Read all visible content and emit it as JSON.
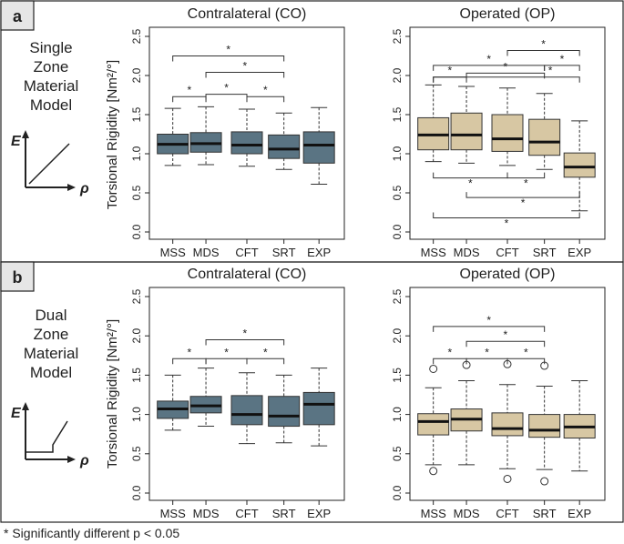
{
  "footnote": "* Significantly different p < 0.05",
  "y_axis_label": "Torsional Rigidity [Nm²/°]",
  "chart_data": [
    {
      "type": "box",
      "panel": "a",
      "row_label": "Single Zone Material Model",
      "title": "Contralateral (CO)",
      "ylim": [
        0,
        2.5
      ],
      "ticks": [
        "0.0",
        "0.5",
        "1.0",
        "1.5",
        "2.0",
        "2.5"
      ],
      "categories": [
        "MSS",
        "MDS",
        "CFT",
        "SRT",
        "EXP"
      ],
      "color": "#5a7483",
      "boxes": [
        {
          "min": 0.85,
          "q1": 1.0,
          "median": 1.12,
          "q3": 1.25,
          "max": 1.58
        },
        {
          "min": 0.86,
          "q1": 1.02,
          "median": 1.13,
          "q3": 1.27,
          "max": 1.6
        },
        {
          "min": 0.84,
          "q1": 1.0,
          "median": 1.11,
          "q3": 1.28,
          "max": 1.57
        },
        {
          "min": 0.8,
          "q1": 0.94,
          "median": 1.06,
          "q3": 1.24,
          "max": 1.52
        },
        {
          "min": 0.61,
          "q1": 0.88,
          "median": 1.11,
          "q3": 1.28,
          "max": 1.59
        }
      ],
      "outliers": [],
      "sig_brackets": [
        {
          "from": 0,
          "to": 1,
          "y": 1.73,
          "dir": "down"
        },
        {
          "from": 1,
          "to": 2,
          "y": 1.76,
          "dir": "down"
        },
        {
          "from": 2,
          "to": 3,
          "y": 1.73,
          "dir": "down"
        },
        {
          "from": 1,
          "to": 3,
          "y": 2.04,
          "dir": "down"
        },
        {
          "from": 0,
          "to": 3,
          "y": 2.25,
          "dir": "down"
        }
      ]
    },
    {
      "type": "box",
      "panel": "a",
      "title": "Operated (OP)",
      "ylim": [
        0,
        2.5
      ],
      "ticks": [
        "0.0",
        "0.5",
        "1.0",
        "1.5",
        "2.0",
        "2.5"
      ],
      "categories": [
        "MSS",
        "MDS",
        "CFT",
        "SRT",
        "EXP"
      ],
      "color": "#d7c7a3",
      "boxes": [
        {
          "min": 0.9,
          "q1": 1.05,
          "median": 1.24,
          "q3": 1.46,
          "max": 1.88
        },
        {
          "min": 0.88,
          "q1": 1.05,
          "median": 1.24,
          "q3": 1.52,
          "max": 1.86
        },
        {
          "min": 0.85,
          "q1": 1.03,
          "median": 1.19,
          "q3": 1.5,
          "max": 1.84
        },
        {
          "min": 0.8,
          "q1": 0.98,
          "median": 1.15,
          "q3": 1.44,
          "max": 1.77
        },
        {
          "min": 0.27,
          "q1": 0.7,
          "median": 0.83,
          "q3": 1.01,
          "max": 1.42
        }
      ],
      "outliers": [],
      "sig_brackets": [
        {
          "from": 0,
          "to": 1,
          "y": 1.98,
          "dir": "down"
        },
        {
          "from": 1,
          "to": 3,
          "y": 2.03,
          "dir": "down"
        },
        {
          "from": 0,
          "to": 3,
          "y": 2.13,
          "dir": "down"
        },
        {
          "from": 3,
          "to": 4,
          "y": 2.13,
          "dir": "down"
        },
        {
          "from": 2,
          "to": 4,
          "y": 2.32,
          "dir": "down"
        },
        {
          "from": 0,
          "to": 4,
          "y": 1.98,
          "dir": "down",
          "drop": 0.07,
          "star_x": 3.2
        },
        {
          "from": 0,
          "to": 2,
          "y": 0.69,
          "dir": "up"
        },
        {
          "from": 2,
          "to": 3,
          "y": 0.69,
          "dir": "up"
        },
        {
          "from": 1,
          "to": 4,
          "y": 0.44,
          "dir": "up"
        },
        {
          "from": 0,
          "to": 4,
          "y": 0.18,
          "dir": "up"
        }
      ]
    },
    {
      "type": "box",
      "panel": "b",
      "row_label": "Dual Zone Material Model",
      "title": "Contralateral (CO)",
      "ylim": [
        0,
        2.5
      ],
      "ticks": [
        "0.0",
        "0.5",
        "1.0",
        "1.5",
        "2.0",
        "2.5"
      ],
      "categories": [
        "MSS",
        "MDS",
        "CFT",
        "SRT",
        "EXP"
      ],
      "color": "#5a7483",
      "boxes": [
        {
          "min": 0.8,
          "q1": 0.95,
          "median": 1.07,
          "q3": 1.17,
          "max": 1.5
        },
        {
          "min": 0.85,
          "q1": 1.02,
          "median": 1.11,
          "q3": 1.23,
          "max": 1.59
        },
        {
          "min": 0.63,
          "q1": 0.87,
          "median": 1.0,
          "q3": 1.24,
          "max": 1.53
        },
        {
          "min": 0.64,
          "q1": 0.85,
          "median": 0.98,
          "q3": 1.23,
          "max": 1.5
        },
        {
          "min": 0.6,
          "q1": 0.87,
          "median": 1.13,
          "q3": 1.28,
          "max": 1.59
        }
      ],
      "outliers": [],
      "sig_brackets": [
        {
          "from": 0,
          "to": 1,
          "y": 1.71,
          "dir": "down"
        },
        {
          "from": 1,
          "to": 2,
          "y": 1.71,
          "dir": "down"
        },
        {
          "from": 2,
          "to": 3,
          "y": 1.71,
          "dir": "down"
        },
        {
          "from": 1,
          "to": 3,
          "y": 1.95,
          "dir": "down"
        }
      ]
    },
    {
      "type": "box",
      "panel": "b",
      "title": "Operated (OP)",
      "ylim": [
        0,
        2.5
      ],
      "ticks": [
        "0.0",
        "0.5",
        "1.0",
        "1.5",
        "2.0",
        "2.5"
      ],
      "categories": [
        "MSS",
        "MDS",
        "CFT",
        "SRT",
        "EXP"
      ],
      "color": "#d7c7a3",
      "boxes": [
        {
          "min": 0.36,
          "q1": 0.74,
          "median": 0.91,
          "q3": 1.01,
          "max": 1.34
        },
        {
          "min": 0.36,
          "q1": 0.79,
          "median": 0.94,
          "q3": 1.07,
          "max": 1.43
        },
        {
          "min": 0.31,
          "q1": 0.73,
          "median": 0.82,
          "q3": 1.02,
          "max": 1.38
        },
        {
          "min": 0.3,
          "q1": 0.71,
          "median": 0.8,
          "q3": 1.0,
          "max": 1.36
        },
        {
          "min": 0.28,
          "q1": 0.7,
          "median": 0.84,
          "q3": 1.0,
          "max": 1.43
        }
      ],
      "outliers": [
        {
          "box": 0,
          "value": 1.58
        },
        {
          "box": 0,
          "value": 0.28
        },
        {
          "box": 1,
          "value": 1.63
        },
        {
          "box": 2,
          "value": 1.64
        },
        {
          "box": 2,
          "value": 0.18
        },
        {
          "box": 3,
          "value": 1.62
        },
        {
          "box": 3,
          "value": 0.15
        }
      ],
      "sig_brackets": [
        {
          "from": 0,
          "to": 1,
          "y": 1.71,
          "dir": "down"
        },
        {
          "from": 1,
          "to": 2,
          "y": 1.71,
          "dir": "down"
        },
        {
          "from": 2,
          "to": 3,
          "y": 1.71,
          "dir": "down"
        },
        {
          "from": 1,
          "to": 3,
          "y": 1.93,
          "dir": "down"
        },
        {
          "from": 0,
          "to": 3,
          "y": 2.12,
          "dir": "down"
        }
      ]
    }
  ],
  "panels": [
    {
      "letter": "a",
      "row_label_lines": [
        "Single",
        "Zone",
        "Material",
        "Model"
      ],
      "graph": "linear"
    },
    {
      "letter": "b",
      "row_label_lines": [
        "Dual",
        "Zone",
        "Material",
        "Model"
      ],
      "graph": "stepped"
    }
  ],
  "axis_symbols": {
    "y": "E",
    "x": "ρ"
  }
}
